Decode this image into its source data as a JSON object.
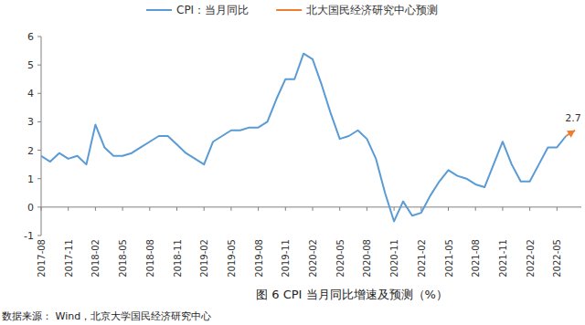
{
  "chart_data": {
    "type": "line",
    "title": "图 6 CPI 当月同比增速及预测（%）",
    "source": "数据来源：  Wind，北京大学国民经济研究中心",
    "categories": [
      "2017-08",
      null,
      null,
      "2017-11",
      null,
      null,
      "2018-02",
      null,
      null,
      "2018-05",
      null,
      null,
      "2018-08",
      null,
      null,
      "2018-11",
      null,
      null,
      "2019-02",
      null,
      null,
      "2019-05",
      null,
      null,
      "2019-08",
      null,
      null,
      "2019-11",
      null,
      null,
      "2020-02",
      null,
      null,
      "2020-05",
      null,
      null,
      "2020-08",
      null,
      null,
      "2020-11",
      null,
      null,
      "2021-02",
      null,
      null,
      "2021-05",
      null,
      null,
      "2021-08",
      null,
      null,
      "2021-11",
      null,
      null,
      "2022-02",
      null,
      null,
      "2022-05",
      null,
      null
    ],
    "series": [
      {
        "name": "CPI：当月同比",
        "color": "#5b9bd5",
        "values": [
          1.8,
          1.6,
          1.9,
          1.7,
          1.8,
          1.5,
          2.9,
          2.1,
          1.8,
          1.8,
          1.9,
          2.1,
          2.3,
          2.5,
          2.5,
          2.2,
          1.9,
          1.7,
          1.5,
          2.3,
          2.5,
          2.7,
          2.7,
          2.8,
          2.8,
          3.0,
          3.8,
          4.5,
          4.5,
          5.4,
          5.2,
          4.3,
          3.3,
          2.4,
          2.5,
          2.7,
          2.4,
          1.7,
          0.5,
          -0.5,
          0.2,
          -0.3,
          -0.2,
          0.4,
          0.9,
          1.3,
          1.1,
          1.0,
          0.8,
          0.7,
          1.5,
          2.3,
          1.5,
          0.9,
          0.9,
          1.5,
          2.1,
          2.1,
          2.5,
          null
        ]
      },
      {
        "name": "北大国民经济研究中心预测",
        "color": "#ed7d31",
        "marker": "arrow",
        "values": [
          null,
          null,
          null,
          null,
          null,
          null,
          null,
          null,
          null,
          null,
          null,
          null,
          null,
          null,
          null,
          null,
          null,
          null,
          null,
          null,
          null,
          null,
          null,
          null,
          null,
          null,
          null,
          null,
          null,
          null,
          null,
          null,
          null,
          null,
          null,
          null,
          null,
          null,
          null,
          null,
          null,
          null,
          null,
          null,
          null,
          null,
          null,
          null,
          null,
          null,
          null,
          null,
          null,
          null,
          null,
          null,
          null,
          null,
          2.5,
          2.7
        ]
      }
    ],
    "annotations": [
      "2.7"
    ],
    "ylim": [
      -1,
      6
    ],
    "yticks": [
      -1,
      0,
      1,
      2,
      3,
      4,
      5,
      6
    ],
    "grid": false,
    "legend": "top"
  }
}
